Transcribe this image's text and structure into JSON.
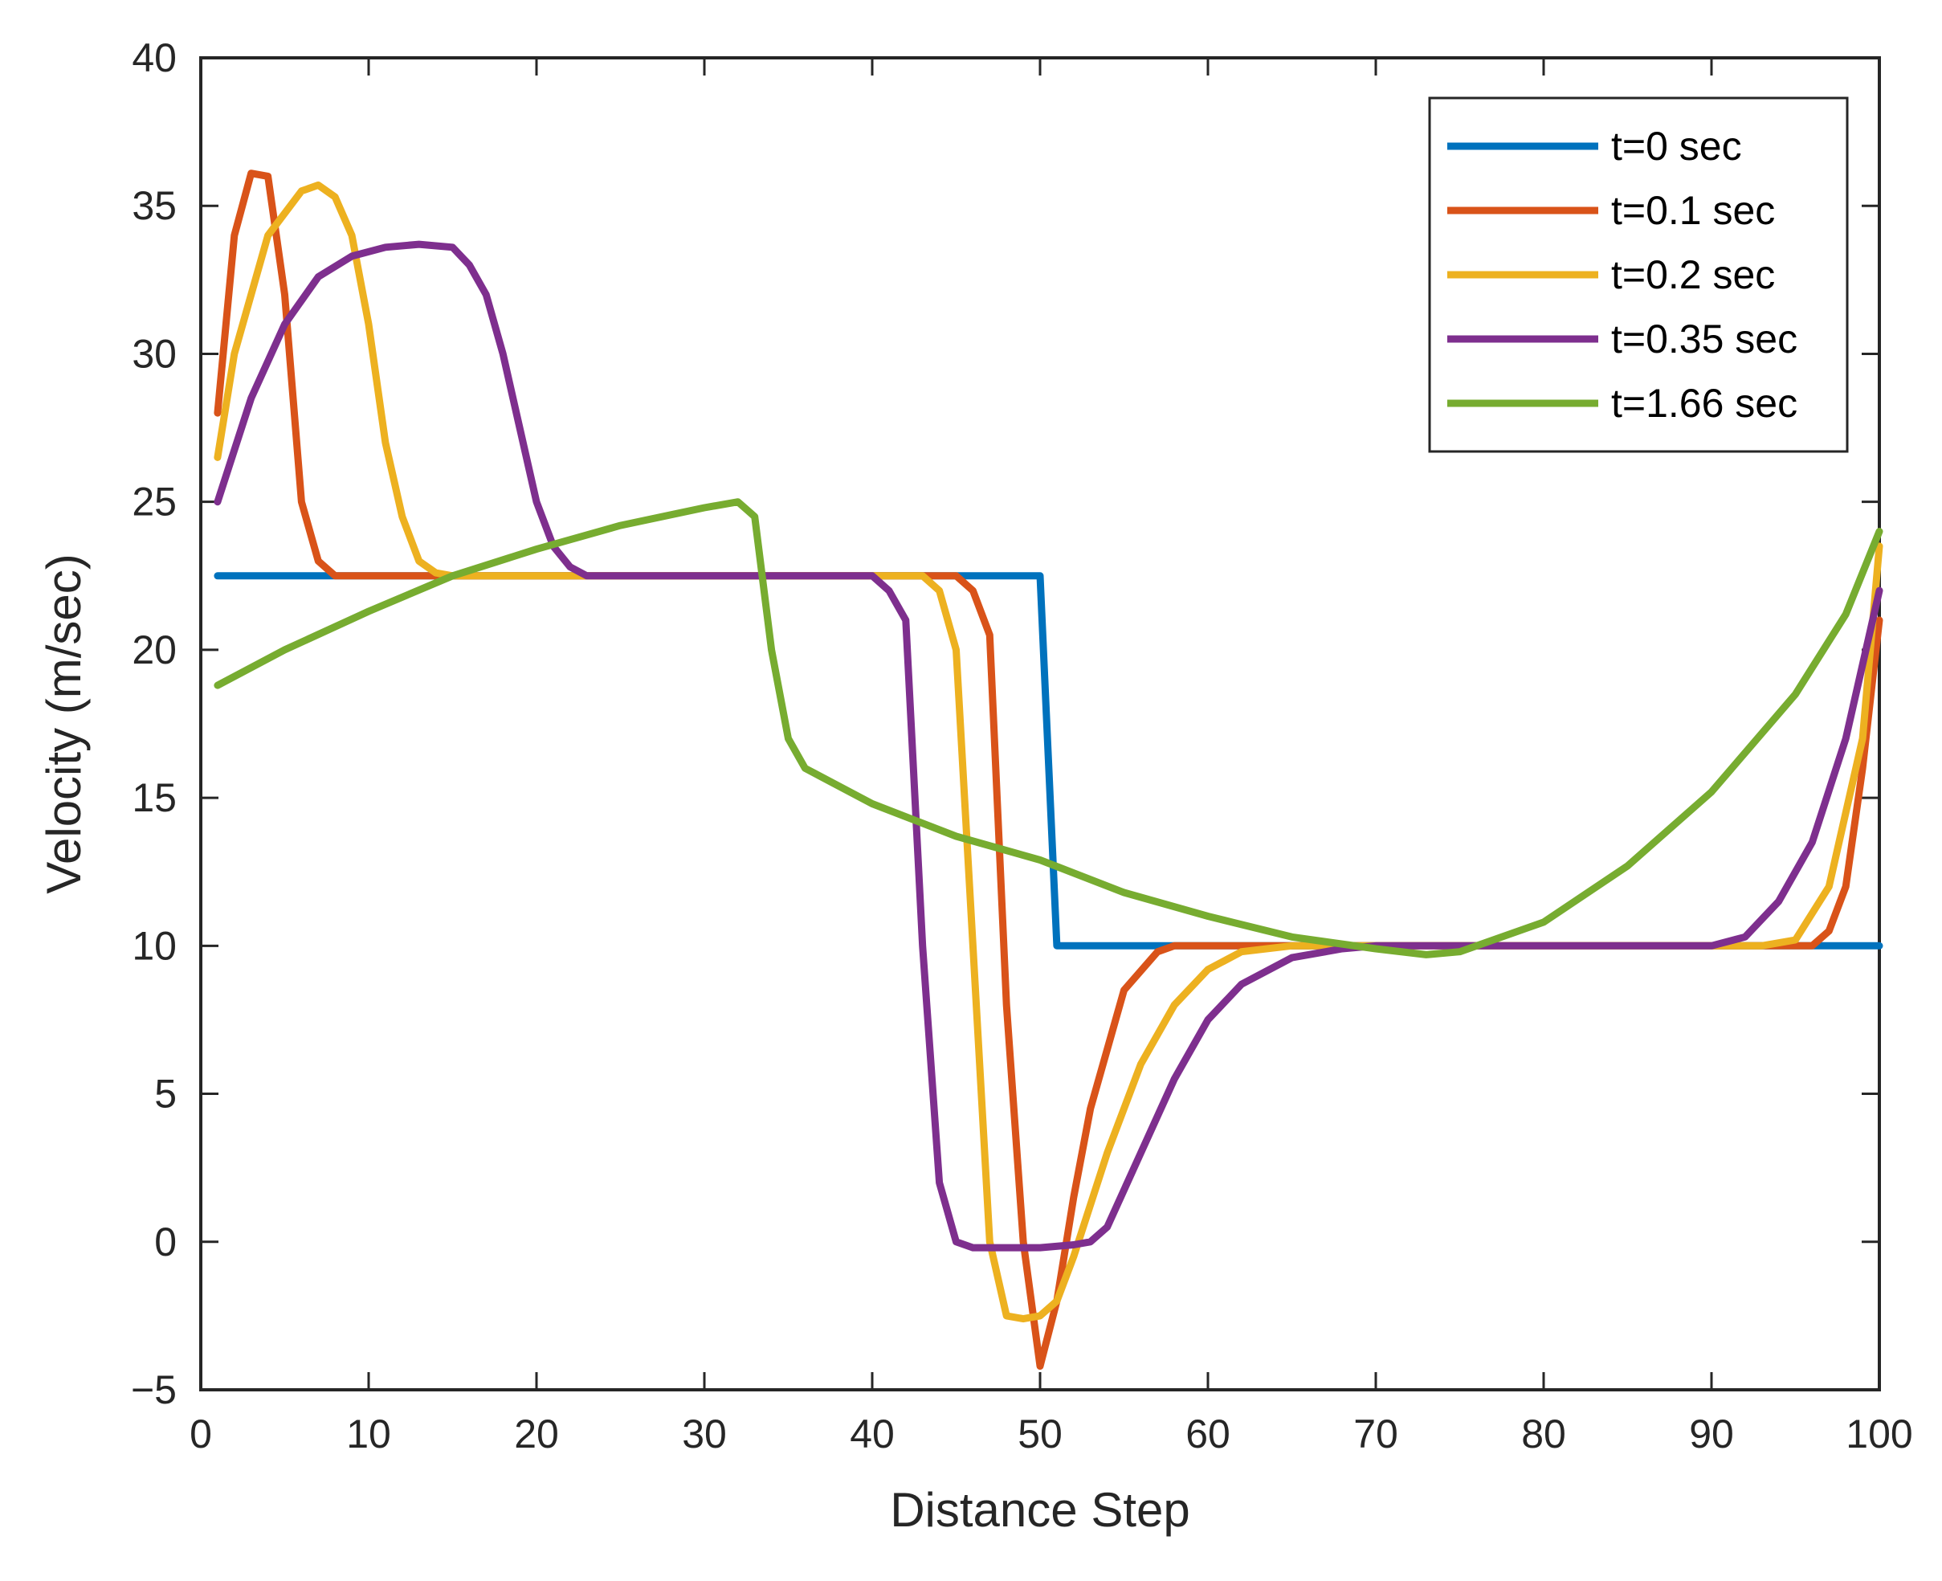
{
  "chart_data": {
    "type": "line",
    "title": "",
    "xlabel": "Distance Step",
    "ylabel": "Velocity (m/sec)",
    "xlim": [
      0,
      100
    ],
    "ylim": [
      -5,
      40
    ],
    "xticks": [
      0,
      10,
      20,
      30,
      40,
      50,
      60,
      70,
      80,
      90,
      100
    ],
    "yticks": [
      -5,
      0,
      5,
      10,
      15,
      20,
      25,
      30,
      35,
      40
    ],
    "grid": false,
    "legend_position": "top-right",
    "series": [
      {
        "name": "t=0 sec",
        "color": "#0072BD",
        "x": [
          1,
          50,
          51,
          100
        ],
        "y": [
          22.5,
          22.5,
          10,
          10
        ]
      },
      {
        "name": "t=0.1 sec",
        "color": "#D95319",
        "x": [
          1,
          2,
          3,
          4,
          5,
          6,
          7,
          8,
          10,
          20,
          30,
          40,
          45,
          46,
          47,
          48,
          49,
          50,
          51,
          52,
          53,
          55,
          57,
          58,
          60,
          70,
          80,
          90,
          95,
          96,
          97,
          98,
          99,
          100
        ],
        "y": [
          28,
          34,
          36.1,
          36,
          32,
          25,
          23,
          22.5,
          22.5,
          22.5,
          22.5,
          22.5,
          22.5,
          22,
          20.5,
          8,
          0,
          -4.2,
          -2,
          1.5,
          4.5,
          8.5,
          9.8,
          10,
          10,
          10,
          10,
          10,
          10,
          10,
          10.5,
          12,
          16,
          21
        ]
      },
      {
        "name": "t=0.2 sec",
        "color": "#EDB120",
        "x": [
          1,
          2,
          4,
          6,
          7,
          8,
          9,
          10,
          11,
          12,
          13,
          14,
          15,
          20,
          30,
          40,
          43,
          44,
          45,
          46,
          47,
          48,
          49,
          50,
          51,
          52,
          54,
          56,
          58,
          60,
          62,
          65,
          70,
          80,
          90,
          93,
          95,
          97,
          99,
          100
        ],
        "y": [
          26.5,
          30,
          34,
          35.5,
          35.7,
          35.3,
          34,
          31,
          27,
          24.5,
          23,
          22.6,
          22.5,
          22.5,
          22.5,
          22.5,
          22.5,
          22,
          20,
          10,
          0,
          -2.5,
          -2.6,
          -2.5,
          -2,
          -0.5,
          3,
          6,
          8,
          9.2,
          9.8,
          10,
          10,
          10,
          10,
          10,
          10.2,
          12,
          17,
          23.5
        ]
      },
      {
        "name": "t=0.35 sec",
        "color": "#7E2F8E",
        "x": [
          1,
          3,
          5,
          7,
          9,
          11,
          13,
          15,
          16,
          17,
          18,
          19,
          20,
          21,
          22,
          23,
          25,
          30,
          40,
          41,
          42,
          43,
          44,
          45,
          46,
          48,
          50,
          52,
          53,
          54,
          56,
          58,
          60,
          62,
          65,
          68,
          70,
          80,
          90,
          92,
          94,
          96,
          98,
          100
        ],
        "y": [
          25,
          28.5,
          31,
          32.6,
          33.3,
          33.6,
          33.7,
          33.6,
          33,
          32,
          30,
          27.5,
          25,
          23.5,
          22.8,
          22.5,
          22.5,
          22.5,
          22.5,
          22,
          21,
          10,
          2,
          0,
          -0.2,
          -0.2,
          -0.2,
          -0.1,
          0,
          0.5,
          3,
          5.5,
          7.5,
          8.7,
          9.6,
          9.9,
          10,
          10,
          10,
          10.3,
          11.5,
          13.5,
          17,
          22
        ]
      },
      {
        "name": "t=1.66 sec",
        "color": "#77AC30",
        "x": [
          1,
          5,
          10,
          15,
          20,
          25,
          30,
          32,
          33,
          34,
          35,
          36,
          40,
          45,
          50,
          55,
          60,
          65,
          70,
          73,
          75,
          80,
          85,
          90,
          95,
          98,
          100
        ],
        "y": [
          18.8,
          20,
          21.3,
          22.5,
          23.4,
          24.2,
          24.8,
          25,
          24.5,
          20,
          17,
          16,
          14.8,
          13.7,
          12.9,
          11.8,
          11,
          10.3,
          9.9,
          9.7,
          9.8,
          10.8,
          12.7,
          15.2,
          18.5,
          21.2,
          24
        ]
      }
    ]
  }
}
